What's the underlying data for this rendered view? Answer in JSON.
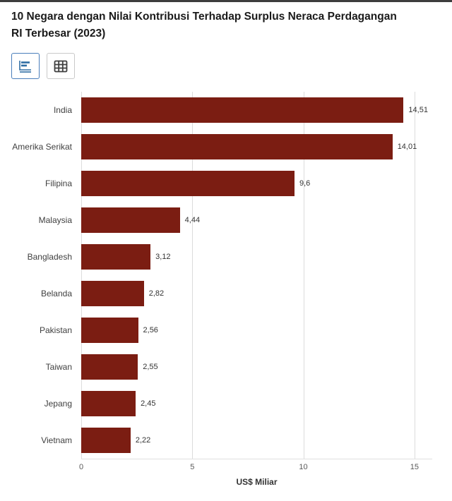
{
  "header": {
    "title_line1": "10 Negara dengan Nilai Kontribusi Terhadap Surplus Neraca Perdagangan",
    "title_line2": "RI Terbesar (2023)"
  },
  "toolbar": {
    "buttons": [
      {
        "name": "chart-view",
        "icon": "bar-chart-icon",
        "active": true
      },
      {
        "name": "table-view",
        "icon": "table-icon",
        "active": false
      }
    ]
  },
  "chart_data": {
    "type": "bar",
    "orientation": "horizontal",
    "categories": [
      "India",
      "Amerika Serikat",
      "Filipina",
      "Malaysia",
      "Bangladesh",
      "Belanda",
      "Pakistan",
      "Taiwan",
      "Jepang",
      "Vietnam"
    ],
    "values": [
      14.51,
      14.01,
      9.6,
      4.44,
      3.12,
      2.82,
      2.56,
      2.55,
      2.45,
      2.22
    ],
    "value_labels": [
      "14,51",
      "14,01",
      "9,6",
      "4,44",
      "3,12",
      "2,82",
      "2,56",
      "2,55",
      "2,45",
      "2,22"
    ],
    "xlabel": "US$ Miliar",
    "x_ticks": [
      0,
      5,
      10,
      15
    ],
    "x_tick_labels": [
      "0",
      "5",
      "10",
      "15"
    ],
    "xlim": [
      0,
      15.8
    ],
    "grid": true,
    "legend": false,
    "colors": {
      "bar": "#7b1d12",
      "grid": "#dcdcdc",
      "tick_label": "#595959",
      "category_label": "#404040",
      "value_label": "#333333",
      "accent_active": "#4a7ebb",
      "top_border": "#3d3d3d"
    }
  }
}
